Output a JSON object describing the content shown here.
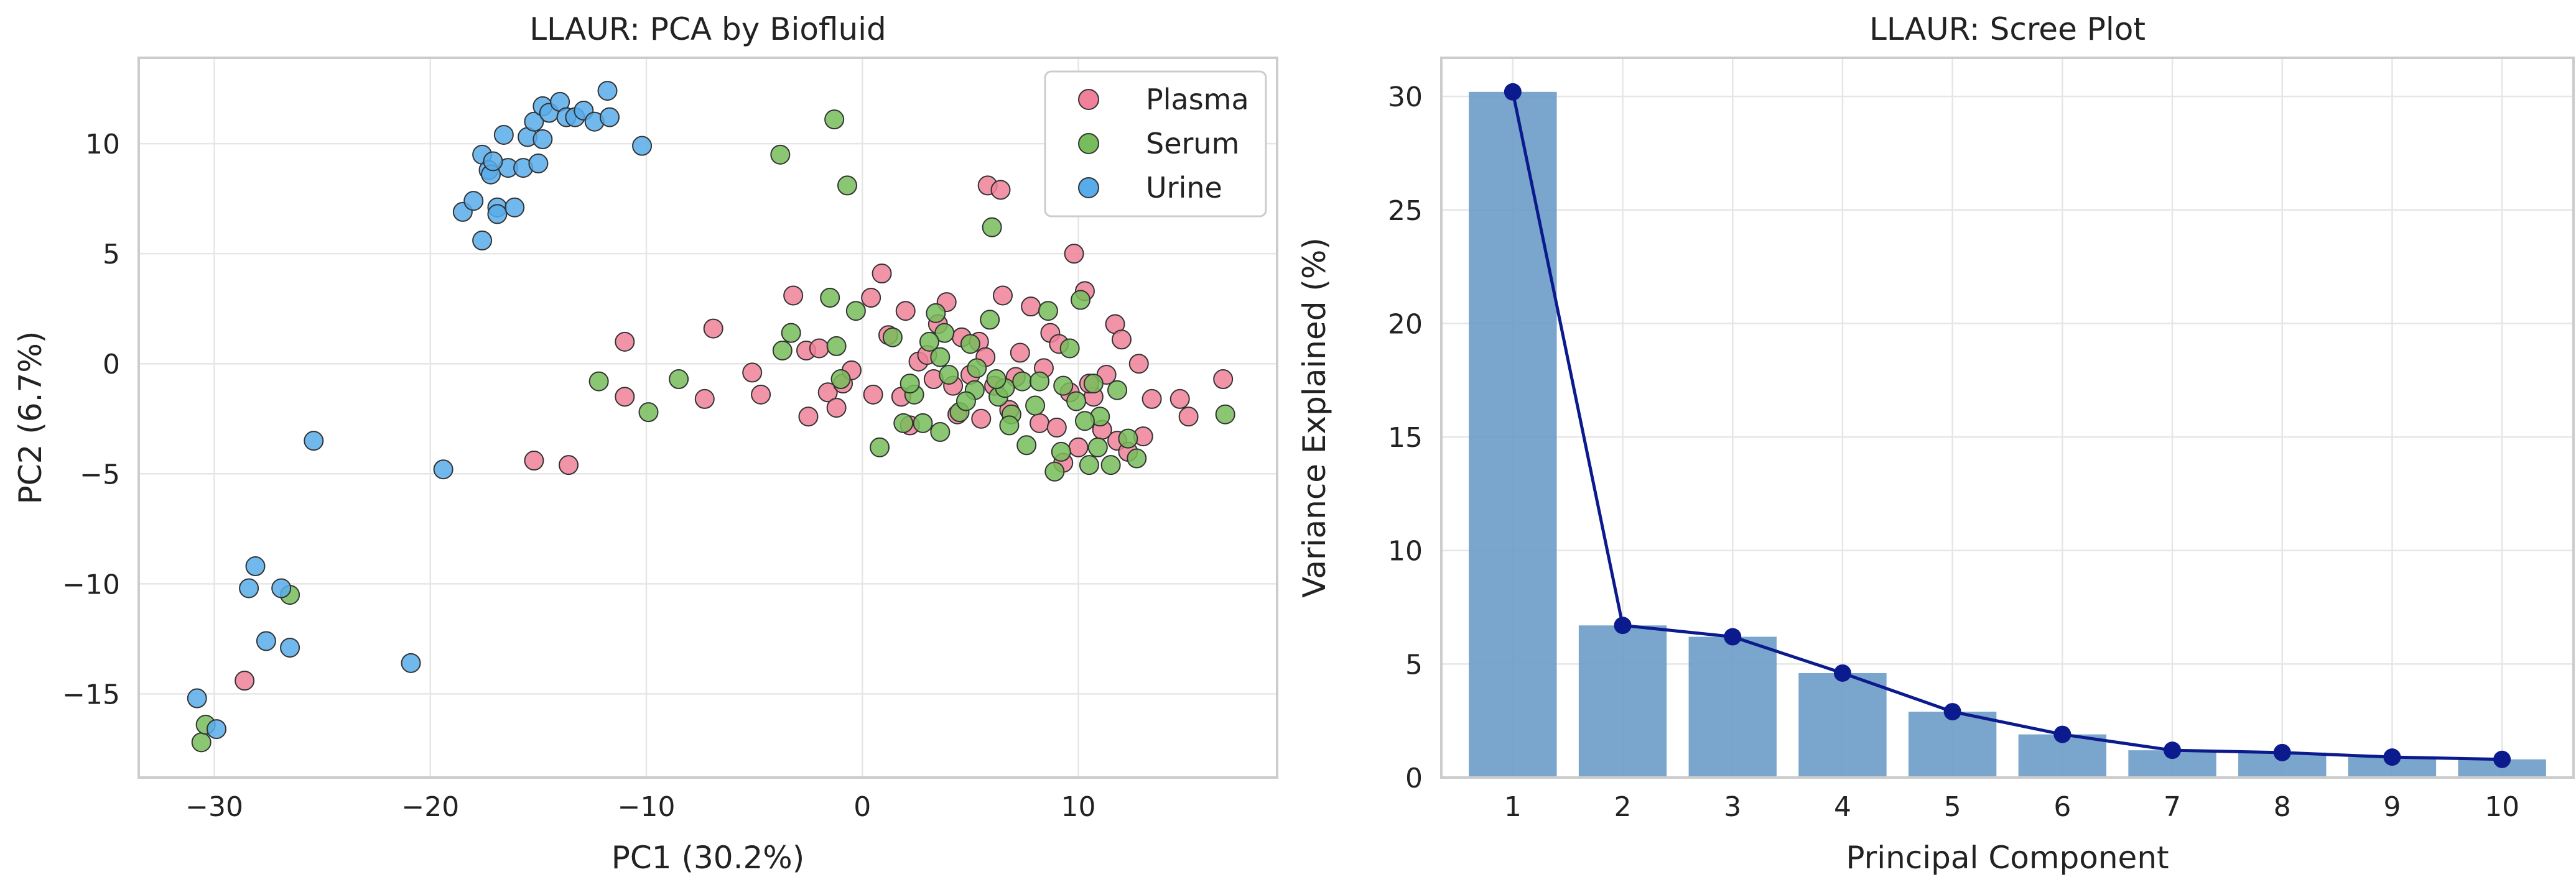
{
  "chart_data": [
    {
      "type": "scatter",
      "title": "LLAUR: PCA by Biofluid",
      "xlabel": "PC1 (30.2%)",
      "ylabel": "PC2 (6.7%)",
      "xlim": [
        -33.5,
        19.2
      ],
      "ylim": [
        -18.8,
        13.9
      ],
      "xticks": [
        -30,
        -20,
        -10,
        0,
        10
      ],
      "yticks": [
        -15,
        -10,
        -5,
        0,
        5,
        10
      ],
      "grid": true,
      "legend_position": "top-right",
      "series": [
        {
          "name": "Plasma",
          "color": "#f08199",
          "points": [
            [
              -28.6,
              -14.4
            ],
            [
              -15.2,
              -4.4
            ],
            [
              -13.6,
              -4.6
            ],
            [
              -11.0,
              1.0
            ],
            [
              -11.0,
              -1.5
            ],
            [
              -7.3,
              -1.6
            ],
            [
              -6.9,
              1.6
            ],
            [
              -5.1,
              -0.4
            ],
            [
              -4.7,
              -1.4
            ],
            [
              -3.2,
              3.1
            ],
            [
              -2.6,
              0.6
            ],
            [
              -2.5,
              -2.4
            ],
            [
              -2.0,
              0.7
            ],
            [
              -1.6,
              -1.3
            ],
            [
              -0.9,
              -0.9
            ],
            [
              -0.5,
              -0.3
            ],
            [
              0.4,
              3.0
            ],
            [
              0.5,
              -1.4
            ],
            [
              0.9,
              4.1
            ],
            [
              1.8,
              -1.5
            ],
            [
              2.2,
              -2.8
            ],
            [
              2.6,
              0.1
            ],
            [
              3.0,
              0.4
            ],
            [
              3.3,
              -0.7
            ],
            [
              3.9,
              2.8
            ],
            [
              4.2,
              -1.0
            ],
            [
              4.6,
              1.2
            ],
            [
              5.0,
              -0.5
            ],
            [
              5.4,
              1.0
            ],
            [
              5.5,
              -2.5
            ],
            [
              5.8,
              8.1
            ],
            [
              6.1,
              -1.0
            ],
            [
              6.4,
              7.9
            ],
            [
              6.5,
              3.1
            ],
            [
              7.3,
              0.5
            ],
            [
              7.8,
              2.6
            ],
            [
              8.2,
              -2.7
            ],
            [
              8.7,
              1.4
            ],
            [
              9.0,
              -2.9
            ],
            [
              9.3,
              -4.5
            ],
            [
              9.8,
              5.0
            ],
            [
              10.0,
              -3.8
            ],
            [
              10.3,
              3.3
            ],
            [
              10.7,
              -1.5
            ],
            [
              11.1,
              -3.0
            ],
            [
              11.3,
              -0.5
            ],
            [
              11.7,
              1.8
            ],
            [
              11.8,
              -3.5
            ],
            [
              12.3,
              -4.0
            ],
            [
              12.8,
              0.0
            ],
            [
              13.4,
              -1.6
            ],
            [
              14.7,
              -1.6
            ],
            [
              15.1,
              -2.4
            ],
            [
              16.7,
              -0.7
            ],
            [
              13.0,
              -3.3
            ],
            [
              9.6,
              -1.3
            ],
            [
              7.1,
              -0.6
            ],
            [
              4.4,
              -2.3
            ],
            [
              1.2,
              1.3
            ],
            [
              6.8,
              -2.1
            ],
            [
              8.4,
              -0.2
            ],
            [
              10.5,
              -0.9
            ],
            [
              5.7,
              0.3
            ],
            [
              3.5,
              1.8
            ],
            [
              -1.2,
              -2.0
            ],
            [
              2.0,
              2.4
            ],
            [
              12.0,
              1.1
            ],
            [
              9.1,
              0.9
            ]
          ]
        },
        {
          "name": "Serum",
          "color": "#77bd5b",
          "points": [
            [
              -30.6,
              -17.2
            ],
            [
              -30.4,
              -16.4
            ],
            [
              -26.5,
              -10.5
            ],
            [
              -12.2,
              -0.8
            ],
            [
              -9.9,
              -2.2
            ],
            [
              -8.5,
              -0.7
            ],
            [
              -3.8,
              9.5
            ],
            [
              -3.7,
              0.6
            ],
            [
              -3.3,
              1.4
            ],
            [
              -1.5,
              3.0
            ],
            [
              -1.3,
              11.1
            ],
            [
              -1.0,
              -0.7
            ],
            [
              -0.7,
              8.1
            ],
            [
              -0.3,
              2.4
            ],
            [
              0.8,
              -3.8
            ],
            [
              1.4,
              1.2
            ],
            [
              1.9,
              -2.7
            ],
            [
              2.4,
              -1.4
            ],
            [
              2.8,
              -2.7
            ],
            [
              3.4,
              2.3
            ],
            [
              3.6,
              -3.1
            ],
            [
              3.8,
              1.4
            ],
            [
              4.0,
              -0.5
            ],
            [
              4.5,
              -2.2
            ],
            [
              5.0,
              0.9
            ],
            [
              5.2,
              -1.2
            ],
            [
              6.0,
              6.2
            ],
            [
              6.3,
              -1.5
            ],
            [
              6.6,
              -1.1
            ],
            [
              6.9,
              -2.3
            ],
            [
              7.4,
              -0.8
            ],
            [
              7.6,
              -3.7
            ],
            [
              8.2,
              -0.8
            ],
            [
              8.6,
              2.4
            ],
            [
              8.9,
              -4.9
            ],
            [
              9.2,
              -4.0
            ],
            [
              9.6,
              0.7
            ],
            [
              9.9,
              -1.7
            ],
            [
              10.1,
              2.9
            ],
            [
              10.5,
              -4.6
            ],
            [
              10.7,
              -0.9
            ],
            [
              11.0,
              -2.4
            ],
            [
              11.5,
              -4.6
            ],
            [
              12.3,
              -3.4
            ],
            [
              12.7,
              -4.3
            ],
            [
              16.8,
              -2.3
            ],
            [
              10.3,
              -2.6
            ],
            [
              6.2,
              -0.7
            ],
            [
              4.8,
              -1.7
            ],
            [
              2.2,
              -0.9
            ],
            [
              3.1,
              1.0
            ],
            [
              5.3,
              -0.2
            ],
            [
              8.0,
              -1.9
            ],
            [
              9.3,
              -1.0
            ],
            [
              11.8,
              -1.2
            ],
            [
              6.8,
              -2.8
            ],
            [
              3.6,
              0.3
            ],
            [
              -1.2,
              0.8
            ],
            [
              5.9,
              2.0
            ],
            [
              10.9,
              -3.8
            ]
          ]
        },
        {
          "name": "Urine",
          "color": "#58acea",
          "points": [
            [
              -30.8,
              -15.2
            ],
            [
              -29.9,
              -16.6
            ],
            [
              -28.4,
              -10.2
            ],
            [
              -28.1,
              -9.2
            ],
            [
              -27.6,
              -12.6
            ],
            [
              -26.9,
              -10.2
            ],
            [
              -26.5,
              -12.9
            ],
            [
              -25.4,
              -3.5
            ],
            [
              -20.9,
              -13.6
            ],
            [
              -19.4,
              -4.8
            ],
            [
              -18.5,
              6.9
            ],
            [
              -18.0,
              7.4
            ],
            [
              -17.6,
              5.6
            ],
            [
              -17.6,
              9.5
            ],
            [
              -17.3,
              8.8
            ],
            [
              -17.2,
              8.6
            ],
            [
              -16.9,
              7.1
            ],
            [
              -16.9,
              6.8
            ],
            [
              -16.6,
              10.4
            ],
            [
              -16.4,
              8.9
            ],
            [
              -16.1,
              7.1
            ],
            [
              -15.7,
              8.9
            ],
            [
              -15.5,
              10.3
            ],
            [
              -15.2,
              11.0
            ],
            [
              -14.8,
              10.2
            ],
            [
              -14.8,
              11.7
            ],
            [
              -14.5,
              11.4
            ],
            [
              -14.0,
              11.9
            ],
            [
              -13.7,
              11.2
            ],
            [
              -13.3,
              11.2
            ],
            [
              -12.9,
              11.5
            ],
            [
              -12.4,
              11.0
            ],
            [
              -11.8,
              12.4
            ],
            [
              -11.7,
              11.2
            ],
            [
              -10.2,
              9.9
            ],
            [
              -15.0,
              9.1
            ],
            [
              -17.1,
              9.2
            ]
          ]
        }
      ]
    },
    {
      "type": "bar",
      "title": "LLAUR: Scree Plot",
      "xlabel": "Principal Component",
      "ylabel": "Variance Explained (%)",
      "categories": [
        "1",
        "2",
        "3",
        "4",
        "5",
        "6",
        "7",
        "8",
        "9",
        "10"
      ],
      "values": [
        30.2,
        6.7,
        6.2,
        4.6,
        2.9,
        1.9,
        1.2,
        1.1,
        0.9,
        0.8
      ],
      "line_values": [
        30.2,
        6.7,
        6.2,
        4.6,
        2.9,
        1.9,
        1.2,
        1.1,
        0.9,
        0.8
      ],
      "ylim": [
        0,
        31.7
      ],
      "yticks": [
        0,
        5,
        10,
        15,
        20,
        25,
        30
      ],
      "grid": true,
      "bar_color": "#6f9dc8",
      "line_color": "#0b1a8c"
    }
  ]
}
